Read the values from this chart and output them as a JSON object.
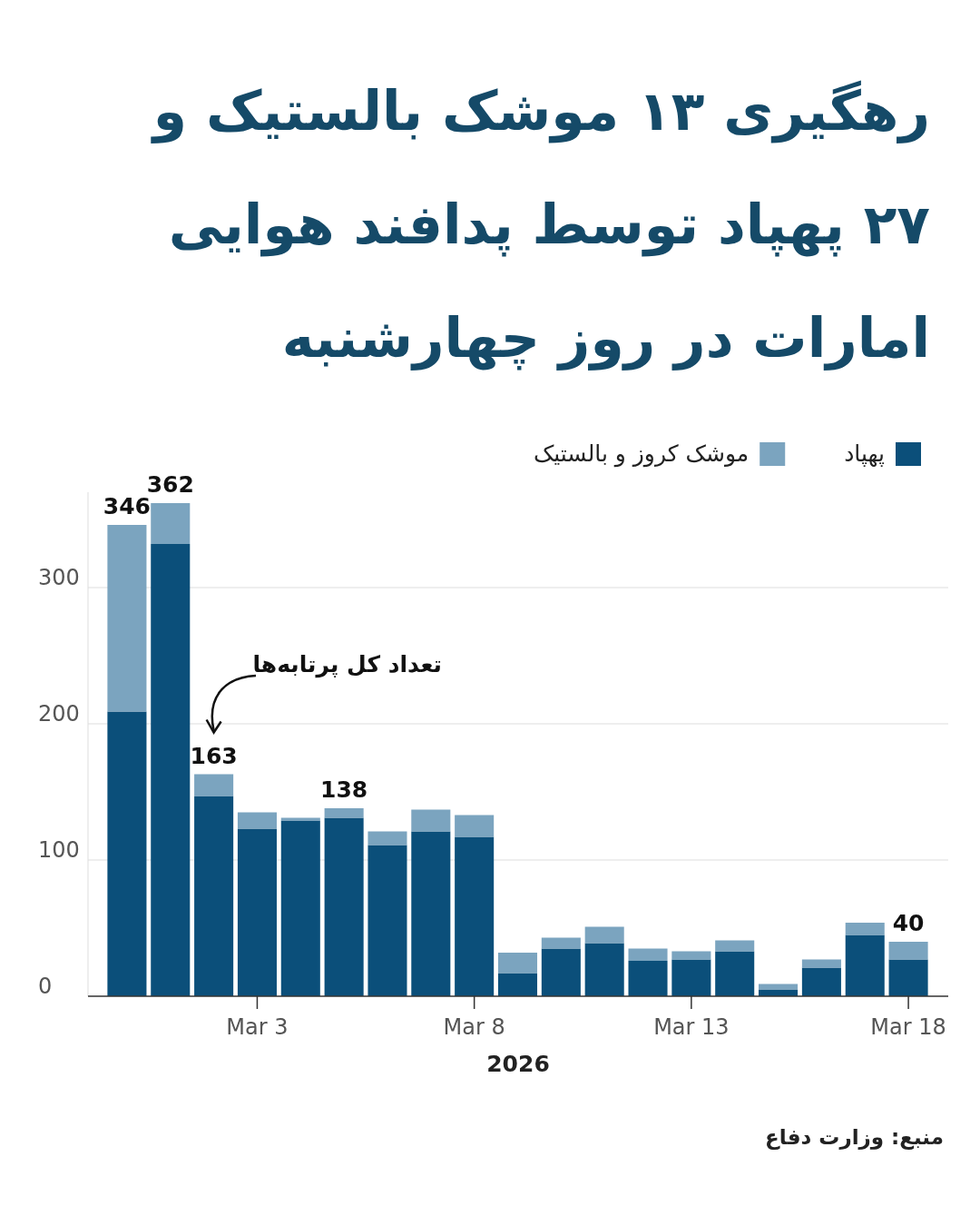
{
  "chart_data": {
    "type": "bar",
    "title": "رهگیری ۱۳ موشک بالستیک و ۲۷ پهپاد توسط پدافند هوایی امارات در روز چهارشنبه",
    "xlabel": "2026",
    "categories": [
      null,
      null,
      null,
      "Mar 3",
      null,
      null,
      null,
      null,
      "Mar 8",
      null,
      null,
      null,
      null,
      "Mar 13",
      null,
      null,
      null,
      null,
      "Mar 18"
    ],
    "stacked": true,
    "series": [
      {
        "name": "پهپاد",
        "color": "#0b4f7a",
        "values": [
          209,
          332,
          147,
          123,
          129,
          131,
          111,
          121,
          117,
          17,
          35,
          39,
          26,
          27,
          33,
          5,
          21,
          45,
          27
        ]
      },
      {
        "name": "موشک کروز و بالستیک",
        "color": "#7ba4bf",
        "values": [
          137,
          30,
          16,
          12,
          2,
          7,
          10,
          16,
          16,
          15,
          8,
          12,
          9,
          6,
          8,
          4,
          6,
          9,
          13
        ]
      }
    ],
    "totals": [
      "346",
      "362",
      "163",
      null,
      null,
      "138",
      null,
      null,
      null,
      null,
      null,
      null,
      null,
      null,
      null,
      null,
      null,
      null,
      "40"
    ],
    "ylim": [
      0,
      370
    ],
    "yticks": [
      0,
      100,
      200,
      300
    ],
    "grid": "y",
    "legend": "top",
    "annotations": [
      "تعداد کل پرتابه‌ها",
      "منبع: وزارت دفاع"
    ]
  }
}
